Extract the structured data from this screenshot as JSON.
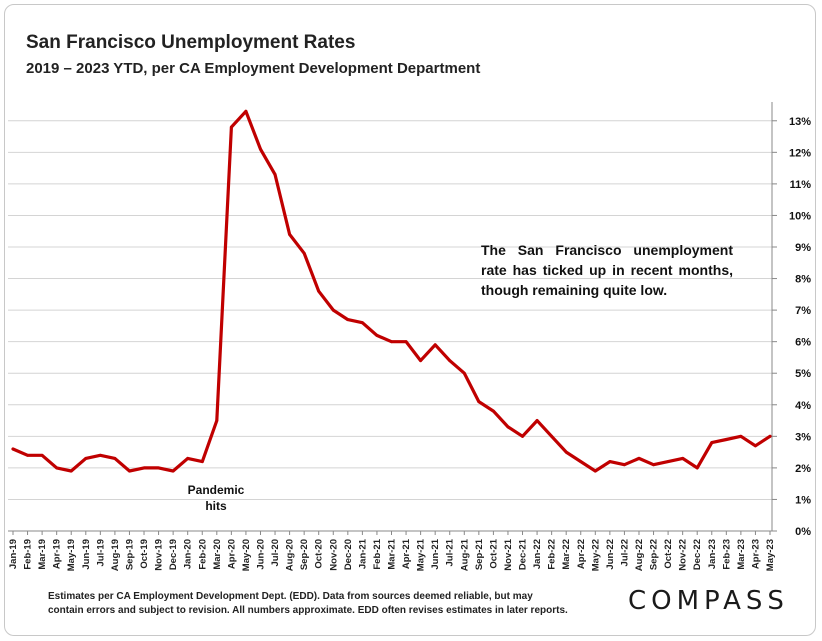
{
  "chart_data": {
    "type": "line",
    "title": "San Francisco Unemployment Rates",
    "subtitle": "2019 – 2023 YTD, per CA Employment Development Department",
    "ylim": [
      0,
      13.5
    ],
    "y_ticks": [
      "0%",
      "1%",
      "2%",
      "3%",
      "4%",
      "5%",
      "6%",
      "7%",
      "8%",
      "9%",
      "10%",
      "11%",
      "12%",
      "13%"
    ],
    "y_tick_values": [
      0,
      1,
      2,
      3,
      4,
      5,
      6,
      7,
      8,
      9,
      10,
      11,
      12,
      13
    ],
    "x": [
      "Jan-19",
      "Feb-19",
      "Mar-19",
      "Apr-19",
      "May-19",
      "Jun-19",
      "Jul-19",
      "Aug-19",
      "Sep-19",
      "Oct-19",
      "Nov-19",
      "Dec-19",
      "Jan-20",
      "Feb-20",
      "Mar-20",
      "Apr-20",
      "May-20",
      "Jun-20",
      "Jul-20",
      "Aug-20",
      "Sep-20",
      "Oct-20",
      "Nov-20",
      "Dec-20",
      "Jan-21",
      "Feb-21",
      "Mar-21",
      "Apr-21",
      "May-21",
      "Jun-21",
      "Jul-21",
      "Aug-21",
      "Sep-21",
      "Oct-21",
      "Nov-21",
      "Dec-21",
      "Jan-22",
      "Feb-22",
      "Mar-22",
      "Apr-22",
      "May-22",
      "Jun-22",
      "Jul-22",
      "Aug-22",
      "Sep-22",
      "Oct-22",
      "Nov-22",
      "Dec-22",
      "Jan-23",
      "Feb-23",
      "Mar-23",
      "Apr-23",
      "May-23"
    ],
    "series": [
      {
        "name": "San Francisco Unemployment Rate",
        "color": "#c00000",
        "values": [
          2.6,
          2.4,
          2.4,
          2.0,
          1.9,
          2.3,
          2.4,
          2.3,
          1.9,
          2.0,
          2.0,
          1.9,
          2.3,
          2.2,
          3.5,
          12.8,
          13.3,
          12.1,
          11.3,
          9.4,
          8.8,
          7.6,
          7.0,
          6.7,
          6.6,
          6.2,
          6.0,
          6.0,
          5.4,
          5.9,
          5.4,
          5.0,
          4.1,
          3.8,
          3.3,
          3.0,
          3.5,
          3.0,
          2.5,
          2.2,
          1.9,
          2.2,
          2.1,
          2.3,
          2.1,
          2.2,
          2.3,
          2.0,
          2.8,
          2.9,
          3.0,
          2.7,
          3.0
        ]
      }
    ],
    "annotations": {
      "callout": "The San Francisco unemployment rate has ticked up in recent months, though remaining quite low.",
      "pandemic_line1": "Pandemic",
      "pandemic_line2": "hits"
    },
    "footnote_line1": "Estimates per CA Employment Development Dept. (EDD). Data from sources deemed reliable, but may",
    "footnote_line2": "contain errors and subject to revision. All numbers approximate.  EDD often revises estimates in later reports.",
    "grid": true,
    "y_axis_position": "right"
  },
  "brand": {
    "logo_text": "COMPASS"
  }
}
